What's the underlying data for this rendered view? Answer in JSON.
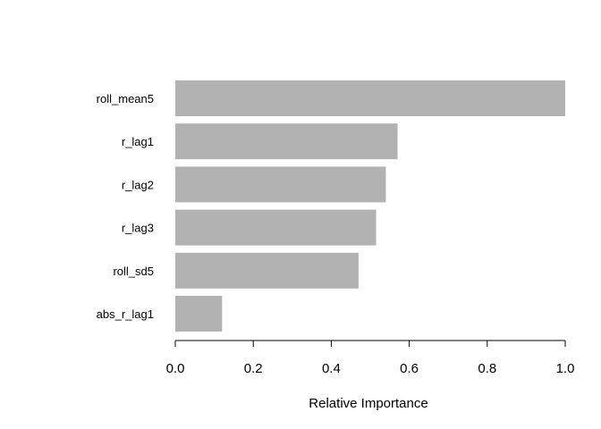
{
  "chart_data": {
    "type": "bar",
    "orientation": "horizontal",
    "categories": [
      "roll_mean5",
      "r_lag1",
      "r_lag2",
      "r_lag3",
      "roll_sd5",
      "abs_r_lag1"
    ],
    "values": [
      1.0,
      0.57,
      0.54,
      0.515,
      0.47,
      0.12
    ],
    "xlabel": "Relative Importance",
    "xlim": [
      0,
      1
    ],
    "xticks": [
      "0.0",
      "0.2",
      "0.4",
      "0.6",
      "0.8",
      "1.0"
    ],
    "grid": false,
    "colors": {
      "bar": "#b2b2b2",
      "axis": "#000000"
    }
  }
}
